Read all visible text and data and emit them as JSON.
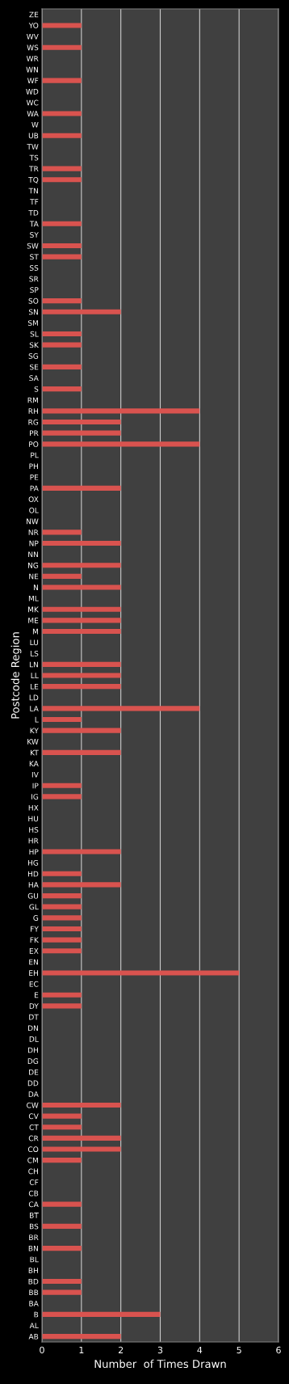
{
  "chart_data": {
    "type": "bar",
    "orientation": "horizontal",
    "xlabel": "Number  of Times Drawn",
    "ylabel": "Postcode Region",
    "categories": [
      "ZE",
      "YO",
      "WV",
      "WS",
      "WR",
      "WN",
      "WF",
      "WD",
      "WC",
      "WA",
      "W",
      "UB",
      "TW",
      "TS",
      "TR",
      "TQ",
      "TN",
      "TF",
      "TD",
      "TA",
      "SY",
      "SW",
      "ST",
      "SS",
      "SR",
      "SP",
      "SO",
      "SN",
      "SM",
      "SL",
      "SK",
      "SG",
      "SE",
      "SA",
      "S",
      "RM",
      "RH",
      "RG",
      "PR",
      "PO",
      "PL",
      "PH",
      "PE",
      "PA",
      "OX",
      "OL",
      "NW",
      "NR",
      "NP",
      "NN",
      "NG",
      "NE",
      "N",
      "ML",
      "MK",
      "ME",
      "M",
      "LU",
      "LS",
      "LN",
      "LL",
      "LE",
      "LD",
      "LA",
      "L",
      "KY",
      "KW",
      "KT",
      "KA",
      "IV",
      "IP",
      "IG",
      "HX",
      "HU",
      "HS",
      "HR",
      "HP",
      "HG",
      "HD",
      "HA",
      "GU",
      "GL",
      "G",
      "FY",
      "FK",
      "EX",
      "EN",
      "EH",
      "EC",
      "E",
      "DY",
      "DT",
      "DN",
      "DL",
      "DH",
      "DG",
      "DE",
      "DD",
      "DA",
      "CW",
      "CV",
      "CT",
      "CR",
      "CO",
      "CM",
      "CH",
      "CF",
      "CB",
      "CA",
      "BT",
      "BS",
      "BR",
      "BN",
      "BL",
      "BH",
      "BD",
      "BB",
      "BA",
      "B",
      "AL",
      "AB"
    ],
    "values": [
      0,
      1,
      0,
      1,
      0,
      0,
      1,
      0,
      0,
      1,
      0,
      1,
      0,
      0,
      1,
      1,
      0,
      0,
      0,
      1,
      0,
      1,
      1,
      0,
      0,
      0,
      1,
      2,
      0,
      1,
      1,
      0,
      1,
      0,
      1,
      0,
      4,
      2,
      2,
      4,
      0,
      0,
      0,
      2,
      0,
      0,
      0,
      1,
      2,
      0,
      2,
      1,
      2,
      0,
      2,
      2,
      2,
      0,
      0,
      2,
      2,
      2,
      0,
      4,
      1,
      2,
      0,
      2,
      0,
      0,
      1,
      1,
      0,
      0,
      0,
      0,
      2,
      0,
      1,
      2,
      1,
      1,
      1,
      1,
      1,
      1,
      0,
      5,
      0,
      1,
      1,
      0,
      0,
      0,
      0,
      0,
      0,
      0,
      0,
      2,
      1,
      1,
      2,
      2,
      1,
      0,
      0,
      0,
      1,
      0,
      1,
      0,
      1,
      0,
      0,
      1,
      1,
      0,
      3,
      0,
      2
    ],
    "color": "#d9534f",
    "xlim": [
      0,
      6
    ],
    "xticks": [
      0,
      1,
      2,
      3,
      4,
      5,
      6
    ],
    "grid": "x"
  }
}
